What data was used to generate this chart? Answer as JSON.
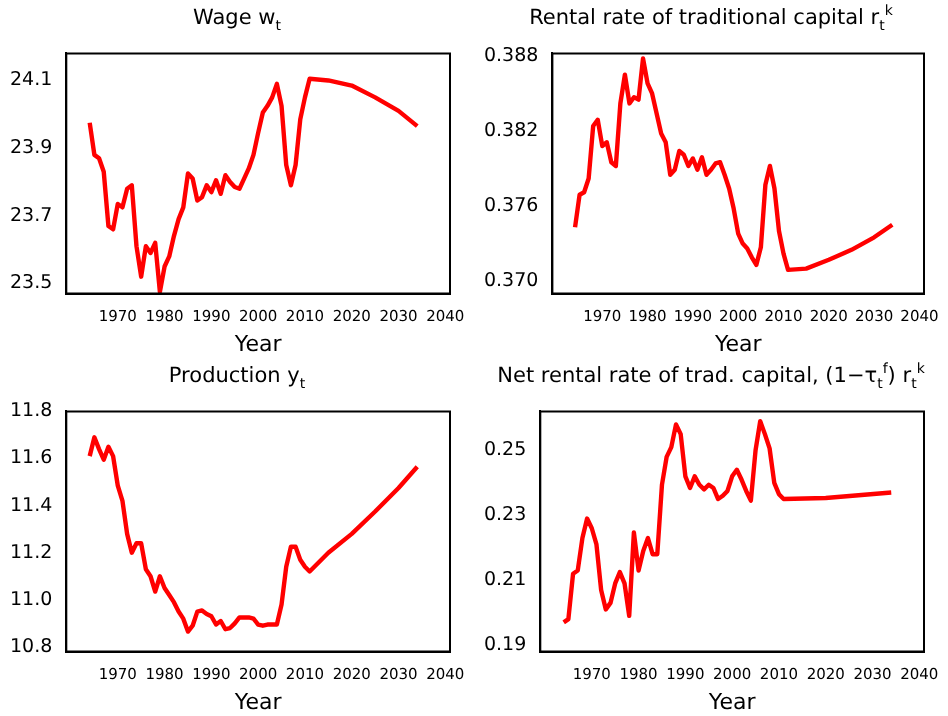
{
  "chart_data": [
    {
      "type": "line",
      "title": "Wage w$_{t}$",
      "xlabel": "Year",
      "color": "#ff0000",
      "xlim": [
        1959,
        2041
      ],
      "xticks": [
        1970,
        1980,
        1990,
        2000,
        2010,
        2020,
        2030,
        2040
      ],
      "ylim": [
        23.47,
        24.18
      ],
      "yticks": [
        23.5,
        23.7,
        23.9,
        24.1
      ],
      "x": [
        1964,
        1965,
        1966,
        1967,
        1968,
        1969,
        1970,
        1971,
        1972,
        1973,
        1974,
        1975,
        1976,
        1977,
        1978,
        1979,
        1980,
        1981,
        1982,
        1983,
        1984,
        1985,
        1986,
        1987,
        1988,
        1989,
        1990,
        1991,
        1992,
        1993,
        1994,
        1995,
        1996,
        1997,
        1998,
        1999,
        2000,
        2001,
        2002,
        2003,
        2004,
        2005,
        2006,
        2007,
        2008,
        2009,
        2010,
        2011,
        2015,
        2020,
        2025,
        2030,
        2034
      ],
      "values": [
        23.975,
        23.88,
        23.87,
        23.83,
        23.67,
        23.66,
        23.735,
        23.725,
        23.78,
        23.79,
        23.61,
        23.52,
        23.61,
        23.59,
        23.62,
        23.475,
        23.55,
        23.58,
        23.64,
        23.69,
        23.725,
        23.825,
        23.81,
        23.745,
        23.755,
        23.79,
        23.77,
        23.805,
        23.765,
        23.82,
        23.8,
        23.785,
        23.78,
        23.81,
        23.84,
        23.88,
        23.945,
        24.005,
        24.025,
        24.05,
        24.09,
        24.025,
        23.85,
        23.79,
        23.85,
        23.985,
        24.05,
        24.105,
        24.1,
        24.085,
        24.05,
        24.01,
        23.965
      ]
    },
    {
      "type": "line",
      "title": "Rental rate of traditional capital r$_{t}$$^{k}$",
      "xlabel": "Year",
      "color": "#ff0000",
      "xlim": [
        1959,
        2041
      ],
      "xticks": [
        1970,
        1980,
        1990,
        2000,
        2010,
        2020,
        2030,
        2040
      ],
      "ylim": [
        0.369,
        0.3882
      ],
      "yticks": [
        {
          "value": 0.37,
          "label": "0.370"
        },
        0.376,
        0.382,
        0.388
      ],
      "x": [
        1964,
        1965,
        1966,
        1967,
        1968,
        1969,
        1970,
        1971,
        1972,
        1973,
        1974,
        1975,
        1976,
        1977,
        1978,
        1979,
        1980,
        1981,
        1982,
        1983,
        1984,
        1985,
        1986,
        1987,
        1988,
        1989,
        1990,
        1991,
        1992,
        1993,
        1994,
        1995,
        1996,
        1997,
        1998,
        1999,
        2000,
        2001,
        2002,
        2003,
        2004,
        2005,
        2006,
        2007,
        2008,
        2009,
        2010,
        2011,
        2015,
        2020,
        2025,
        2030,
        2034
      ],
      "values": [
        0.3743,
        0.3769,
        0.3771,
        0.3782,
        0.3824,
        0.3829,
        0.3808,
        0.3811,
        0.3795,
        0.3792,
        0.3842,
        0.3865,
        0.3842,
        0.3847,
        0.3845,
        0.3878,
        0.3858,
        0.385,
        0.3834,
        0.3818,
        0.3811,
        0.3785,
        0.3789,
        0.3804,
        0.3801,
        0.3792,
        0.3798,
        0.3789,
        0.3799,
        0.3785,
        0.3789,
        0.3794,
        0.3795,
        0.3785,
        0.3774,
        0.3758,
        0.3738,
        0.373,
        0.3726,
        0.3719,
        0.3713,
        0.3727,
        0.3777,
        0.3792,
        0.3774,
        0.374,
        0.3722,
        0.3709,
        0.371,
        0.3717,
        0.3725,
        0.3735,
        0.3745
      ]
    },
    {
      "type": "line",
      "title": "Production y$_{t}$",
      "xlabel": "Year",
      "color": "#ff0000",
      "xlim": [
        1959,
        2041
      ],
      "xticks": [
        1970,
        1980,
        1990,
        2000,
        2010,
        2020,
        2030,
        2040
      ],
      "ylim": [
        10.78,
        11.8
      ],
      "yticks": [
        10.8,
        {
          "value": 11,
          "label": "11.0"
        },
        11.2,
        11.4,
        11.6,
        11.8
      ],
      "x": [
        1964,
        1965,
        1966,
        1967,
        1968,
        1969,
        1970,
        1971,
        1972,
        1973,
        1974,
        1975,
        1976,
        1977,
        1978,
        1979,
        1980,
        1981,
        1982,
        1983,
        1984,
        1985,
        1986,
        1987,
        1988,
        1989,
        1990,
        1991,
        1992,
        1993,
        1994,
        1995,
        1996,
        1997,
        1998,
        1999,
        2000,
        2001,
        2002,
        2003,
        2004,
        2005,
        2006,
        2007,
        2008,
        2009,
        2010,
        2011,
        2015,
        2020,
        2025,
        2030,
        2034
      ],
      "values": [
        11.61,
        11.69,
        11.64,
        11.595,
        11.65,
        11.61,
        11.485,
        11.42,
        11.28,
        11.2,
        11.24,
        11.24,
        11.13,
        11.1,
        11.035,
        11.1,
        11.05,
        11.02,
        10.99,
        10.95,
        10.92,
        10.865,
        10.89,
        10.95,
        10.955,
        10.94,
        10.93,
        10.895,
        10.91,
        10.875,
        10.88,
        10.9,
        10.925,
        10.925,
        10.925,
        10.92,
        10.895,
        10.89,
        10.895,
        10.895,
        10.895,
        10.98,
        11.14,
        11.225,
        11.225,
        11.17,
        11.14,
        11.12,
        11.2,
        11.28,
        11.375,
        11.475,
        11.565
      ]
    },
    {
      "type": "line",
      "title": "Net rental rate of trad. capital, (1−τ$_{t}$$^{f}$) r$_{t}$$^{k}$",
      "xlabel": "Year",
      "color": "#ff0000",
      "xlim": [
        1959,
        2041
      ],
      "xticks": [
        1970,
        1980,
        1990,
        2000,
        2010,
        2020,
        2030,
        2040
      ],
      "ylim": [
        0.188,
        0.262
      ],
      "yticks": [
        0.19,
        0.21,
        0.23,
        0.25
      ],
      "x": [
        1964,
        1965,
        1966,
        1967,
        1968,
        1969,
        1970,
        1971,
        1972,
        1973,
        1974,
        1975,
        1976,
        1977,
        1978,
        1979,
        1980,
        1981,
        1982,
        1983,
        1984,
        1985,
        1986,
        1987,
        1988,
        1989,
        1990,
        1991,
        1992,
        1993,
        1994,
        1995,
        1996,
        1997,
        1998,
        1999,
        2000,
        2001,
        2002,
        2003,
        2004,
        2005,
        2006,
        2007,
        2008,
        2009,
        2010,
        2011,
        2020,
        2034
      ],
      "values": [
        0.197,
        0.198,
        0.212,
        0.213,
        0.223,
        0.229,
        0.226,
        0.221,
        0.207,
        0.201,
        0.203,
        0.209,
        0.2125,
        0.209,
        0.199,
        0.2247,
        0.213,
        0.219,
        0.223,
        0.218,
        0.218,
        0.2394,
        0.248,
        0.251,
        0.258,
        0.255,
        0.242,
        0.2384,
        0.242,
        0.2394,
        0.238,
        0.2394,
        0.2384,
        0.235,
        0.236,
        0.2375,
        0.242,
        0.244,
        0.241,
        0.2375,
        0.2345,
        0.25,
        0.259,
        0.255,
        0.2506,
        0.24,
        0.2365,
        0.235,
        0.2353,
        0.237
      ]
    }
  ]
}
